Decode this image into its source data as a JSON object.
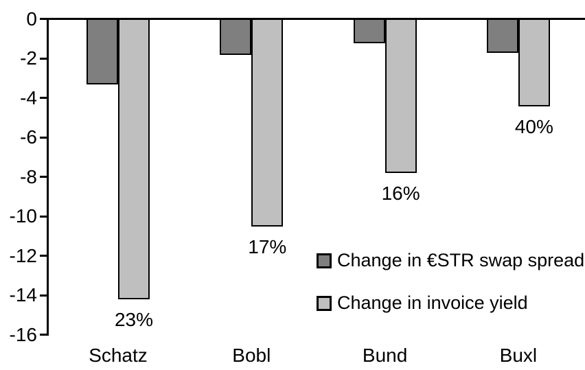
{
  "chart_data": {
    "type": "bar",
    "title": "",
    "xlabel": "",
    "ylabel": "",
    "categories": [
      "Schatz",
      "Bobl",
      "Bund",
      "Buxl"
    ],
    "series": [
      {
        "name": "Change in €STR swap spread",
        "color": "#7f7f7f",
        "values": [
          -3.3,
          -1.8,
          -1.2,
          -1.7
        ]
      },
      {
        "name": "Change in invoice yield",
        "color": "#bfbfbf",
        "values": [
          -14.2,
          -10.5,
          -7.8,
          -4.4
        ],
        "labels": [
          "23%",
          "17%",
          "16%",
          "40%"
        ]
      }
    ],
    "ylim": [
      -16,
      0
    ],
    "yticks": [
      0,
      -2,
      -4,
      -6,
      -8,
      -10,
      -12,
      -14,
      -16
    ],
    "grid": false,
    "legend_position": "inside-right",
    "bar_outline_color": "#000000",
    "axis_color": "#000000",
    "background_color": "#ffffff"
  }
}
